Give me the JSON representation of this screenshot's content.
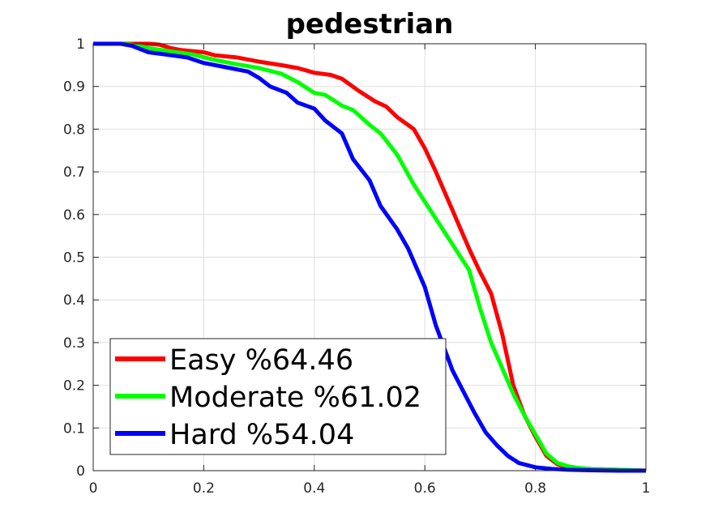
{
  "chart_data": {
    "type": "line",
    "title": "pedestrian",
    "xlabel": "",
    "ylabel": "",
    "xlim": [
      0,
      1
    ],
    "ylim": [
      0,
      1
    ],
    "xticks": [
      "0",
      "0.2",
      "0.4",
      "0.6",
      "0.8",
      "1"
    ],
    "yticks": [
      "0",
      "0.1",
      "0.2",
      "0.3",
      "0.4",
      "0.5",
      "0.6",
      "0.7",
      "0.8",
      "0.9",
      "1"
    ],
    "grid": true,
    "legend_position": "bottom-left",
    "series": [
      {
        "name": "Easy %64.46",
        "color": "#ff0000",
        "x": [
          0,
          0.05,
          0.07,
          0.1,
          0.12,
          0.14,
          0.16,
          0.2,
          0.22,
          0.26,
          0.3,
          0.34,
          0.37,
          0.4,
          0.43,
          0.45,
          0.48,
          0.51,
          0.53,
          0.55,
          0.58,
          0.6,
          0.62,
          0.64,
          0.66,
          0.68,
          0.7,
          0.72,
          0.74,
          0.76,
          0.78,
          0.8,
          0.82,
          0.84,
          0.86,
          0.88,
          0.9,
          0.95,
          1
        ],
        "y": [
          1,
          1,
          1,
          1,
          0.998,
          0.99,
          0.985,
          0.98,
          0.973,
          0.968,
          0.958,
          0.95,
          0.943,
          0.932,
          0.927,
          0.918,
          0.89,
          0.865,
          0.853,
          0.828,
          0.8,
          0.755,
          0.7,
          0.64,
          0.58,
          0.52,
          0.465,
          0.415,
          0.32,
          0.2,
          0.13,
          0.08,
          0.035,
          0.015,
          0.008,
          0.005,
          0.004,
          0.002,
          0
        ]
      },
      {
        "name": "Moderate %61.02",
        "color": "#00ff00",
        "x": [
          0,
          0.05,
          0.07,
          0.1,
          0.14,
          0.18,
          0.22,
          0.26,
          0.3,
          0.34,
          0.37,
          0.4,
          0.42,
          0.45,
          0.47,
          0.5,
          0.52,
          0.55,
          0.58,
          0.6,
          0.63,
          0.66,
          0.68,
          0.7,
          0.72,
          0.74,
          0.76,
          0.78,
          0.8,
          0.82,
          0.84,
          0.86,
          0.88,
          0.9,
          0.95,
          1
        ],
        "y": [
          1,
          1,
          0.998,
          0.99,
          0.982,
          0.975,
          0.962,
          0.952,
          0.943,
          0.93,
          0.91,
          0.885,
          0.88,
          0.855,
          0.845,
          0.81,
          0.79,
          0.74,
          0.67,
          0.63,
          0.57,
          0.51,
          0.47,
          0.38,
          0.3,
          0.24,
          0.18,
          0.13,
          0.085,
          0.04,
          0.018,
          0.01,
          0.006,
          0.004,
          0.002,
          0
        ]
      },
      {
        "name": "Hard %54.04",
        "color": "#0000ff",
        "x": [
          0,
          0.05,
          0.07,
          0.1,
          0.13,
          0.17,
          0.2,
          0.24,
          0.28,
          0.3,
          0.32,
          0.35,
          0.37,
          0.4,
          0.42,
          0.45,
          0.47,
          0.5,
          0.52,
          0.55,
          0.57,
          0.6,
          0.62,
          0.64,
          0.65,
          0.67,
          0.69,
          0.71,
          0.73,
          0.75,
          0.77,
          0.8,
          0.83,
          0.86,
          0.9,
          0.95,
          1
        ],
        "y": [
          1,
          1,
          0.995,
          0.98,
          0.975,
          0.968,
          0.955,
          0.945,
          0.935,
          0.92,
          0.9,
          0.885,
          0.862,
          0.848,
          0.82,
          0.79,
          0.73,
          0.68,
          0.62,
          0.565,
          0.52,
          0.43,
          0.34,
          0.27,
          0.235,
          0.185,
          0.135,
          0.09,
          0.06,
          0.035,
          0.018,
          0.008,
          0.004,
          0.002,
          0.001,
          0,
          0
        ]
      }
    ]
  }
}
